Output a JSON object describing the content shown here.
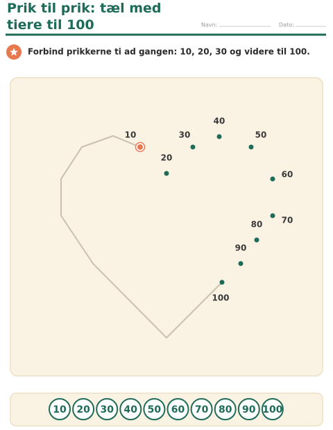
{
  "header": {
    "title": "Prik til prik: tæl med tiere til 100",
    "name_label": "Navn:",
    "date_label": "Dato:"
  },
  "instruction": "Forbind prikkerne ti ad gangen: 10, 20, 30 og videre til 100.",
  "dots": [
    "10",
    "20",
    "30",
    "40",
    "50",
    "60",
    "70",
    "80",
    "90",
    "100"
  ],
  "answer_strip": [
    "10",
    "20",
    "30",
    "40",
    "50",
    "60",
    "70",
    "80",
    "90",
    "100"
  ]
}
